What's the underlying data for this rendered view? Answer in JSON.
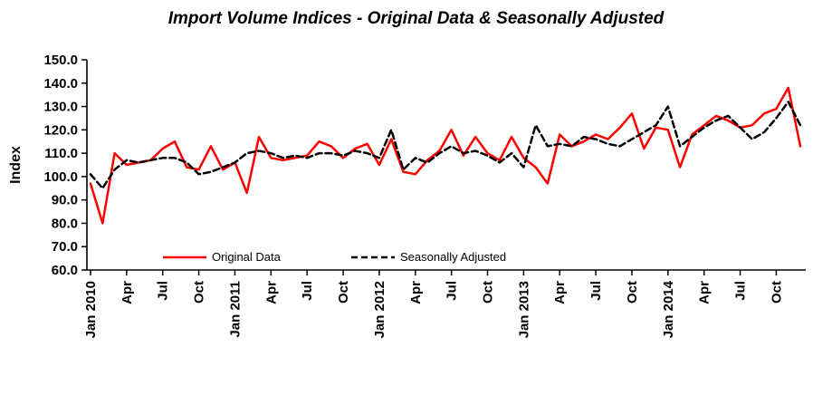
{
  "chart_data": {
    "type": "line",
    "title": "Import Volume Indices - Original Data & Seasonally Adjusted",
    "xlabel": "",
    "ylabel": "Index",
    "ylim": [
      60,
      150
    ],
    "ytick_step": 10,
    "ytick_format": "one_decimal",
    "grid": false,
    "legend_position": "bottom-inside",
    "xtick_every": 3,
    "xtick_labels": [
      "Jan 2010",
      "Apr",
      "Jul",
      "Oct",
      "Jan 2011",
      "Apr",
      "Jul",
      "Oct",
      "Jan 2012",
      "Apr",
      "Jul",
      "Oct",
      "Jan 2013",
      "Apr",
      "Jul",
      "Oct",
      "Jan 2014",
      "Apr",
      "Jul",
      "Oct"
    ],
    "series": [
      {
        "name": "Original Data",
        "color": "#ff0000",
        "style": "solid",
        "values": [
          97,
          80,
          110,
          105,
          106,
          107,
          112,
          115,
          104,
          103,
          113,
          103,
          106,
          93,
          117,
          108,
          107,
          108,
          109,
          115,
          113,
          108,
          112,
          114,
          105,
          116,
          102,
          101,
          107,
          111,
          120,
          109,
          117,
          110,
          107,
          117,
          108,
          104,
          97,
          118,
          113,
          115,
          118,
          116,
          121,
          127,
          112,
          121,
          120,
          104,
          118,
          122,
          126,
          124,
          121,
          122,
          127,
          129,
          138,
          113
        ]
      },
      {
        "name": "Seasonally Adjusted",
        "color": "#000000",
        "style": "dashed",
        "values": [
          101,
          95,
          103,
          107,
          106,
          107,
          108,
          108,
          106,
          101,
          102,
          104,
          106,
          110,
          111,
          110,
          108,
          109,
          108,
          110,
          110,
          109,
          111,
          110,
          108,
          120,
          103,
          108,
          106,
          110,
          113,
          110,
          111,
          109,
          106,
          110,
          104,
          122,
          113,
          114,
          113,
          117,
          116,
          114,
          113,
          116,
          119,
          122,
          130,
          113,
          117,
          121,
          124,
          126,
          121,
          116,
          119,
          125,
          132,
          122
        ]
      }
    ]
  }
}
